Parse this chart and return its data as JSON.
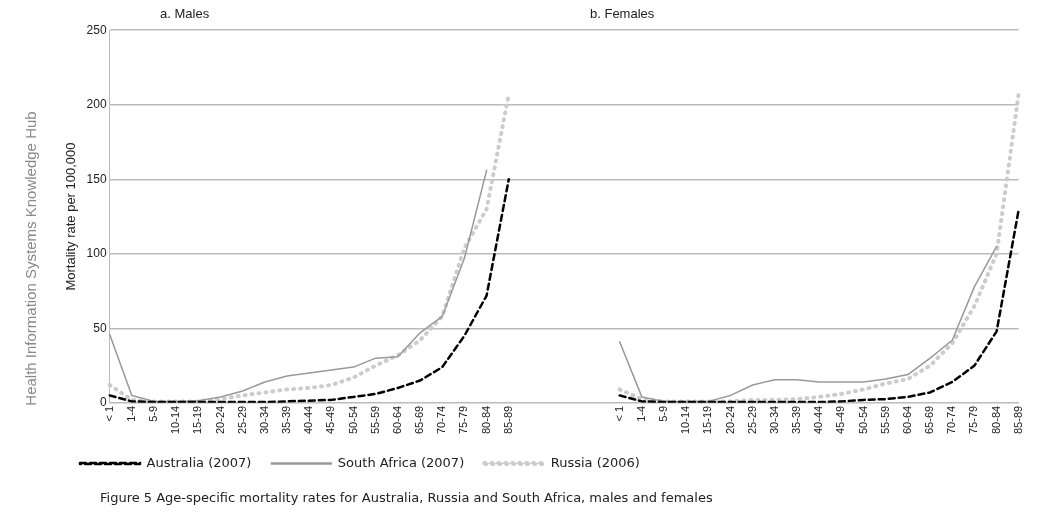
{
  "chart_data": {
    "type": "line",
    "categories": [
      "< 1",
      "1-4",
      "5-9",
      "10-14",
      "15-19",
      "20-24",
      "25-29",
      "30-34",
      "35-39",
      "40-44",
      "45-49",
      "50-54",
      "55-59",
      "60-64",
      "65-69",
      "70-74",
      "75-79",
      "80-84",
      "85-89",
      null,
      null,
      null,
      null,
      "< 1",
      "1-4",
      "5-9",
      "10-14",
      "15-19",
      "20-24",
      "25-29",
      "30-34",
      "35-39",
      "40-44",
      "45-49",
      "50-54",
      "55-59",
      "60-64",
      "65-69",
      "70-74",
      "75-79",
      "80-84",
      "85-89"
    ],
    "ylabel": "Mortality rate per 100,000",
    "ylim": [
      0,
      250
    ],
    "yticks": [
      0,
      50,
      100,
      150,
      200,
      250
    ],
    "grid": "y",
    "legend": "bottom",
    "marker": "none",
    "series": [
      {
        "name": "Australia (2007)",
        "color": "#000000",
        "line_style": "dashed",
        "values": [
          5,
          1,
          0.5,
          0.5,
          0.5,
          0.5,
          0.5,
          0.5,
          1,
          1.5,
          2,
          4,
          6,
          10,
          15,
          24,
          45,
          72,
          150,
          null,
          null,
          null,
          null,
          5,
          1,
          0.5,
          0.5,
          0.5,
          0.5,
          0.5,
          0.5,
          0.5,
          0.5,
          1,
          2,
          2.5,
          4,
          7,
          14,
          25,
          48,
          130
        ]
      },
      {
        "name": "South Africa (2007)",
        "color": "#999999",
        "line_style": "solid",
        "values": [
          46,
          5,
          1,
          1,
          1.5,
          4,
          8,
          14,
          18,
          20,
          22,
          24,
          30,
          31,
          47,
          58,
          97,
          156,
          null,
          null,
          null,
          null,
          null,
          41,
          4,
          1,
          1,
          1,
          5,
          12,
          15.5,
          15.5,
          14,
          14,
          14,
          16,
          19,
          30,
          42,
          78,
          105,
          null
        ]
      },
      {
        "name": "Russia (2006)",
        "color": "#cccccc",
        "line_style": "dotted",
        "values": [
          12,
          2,
          1,
          1,
          1,
          2.5,
          5,
          7,
          9,
          10,
          12,
          17,
          25,
          32,
          42,
          58,
          104,
          130,
          207,
          null,
          null,
          null,
          null,
          9,
          2.5,
          1,
          1,
          1,
          1,
          2,
          2,
          2.5,
          4,
          6,
          9,
          13,
          16,
          25,
          40,
          65,
          100,
          208
        ]
      }
    ],
    "annotations": [
      "a. Males",
      "b. Females",
      "Figure 5   Age-specific mortality rates for Australia, Russia and South Africa, males and females",
      "Health Information Systems Knowledge Hub"
    ]
  }
}
